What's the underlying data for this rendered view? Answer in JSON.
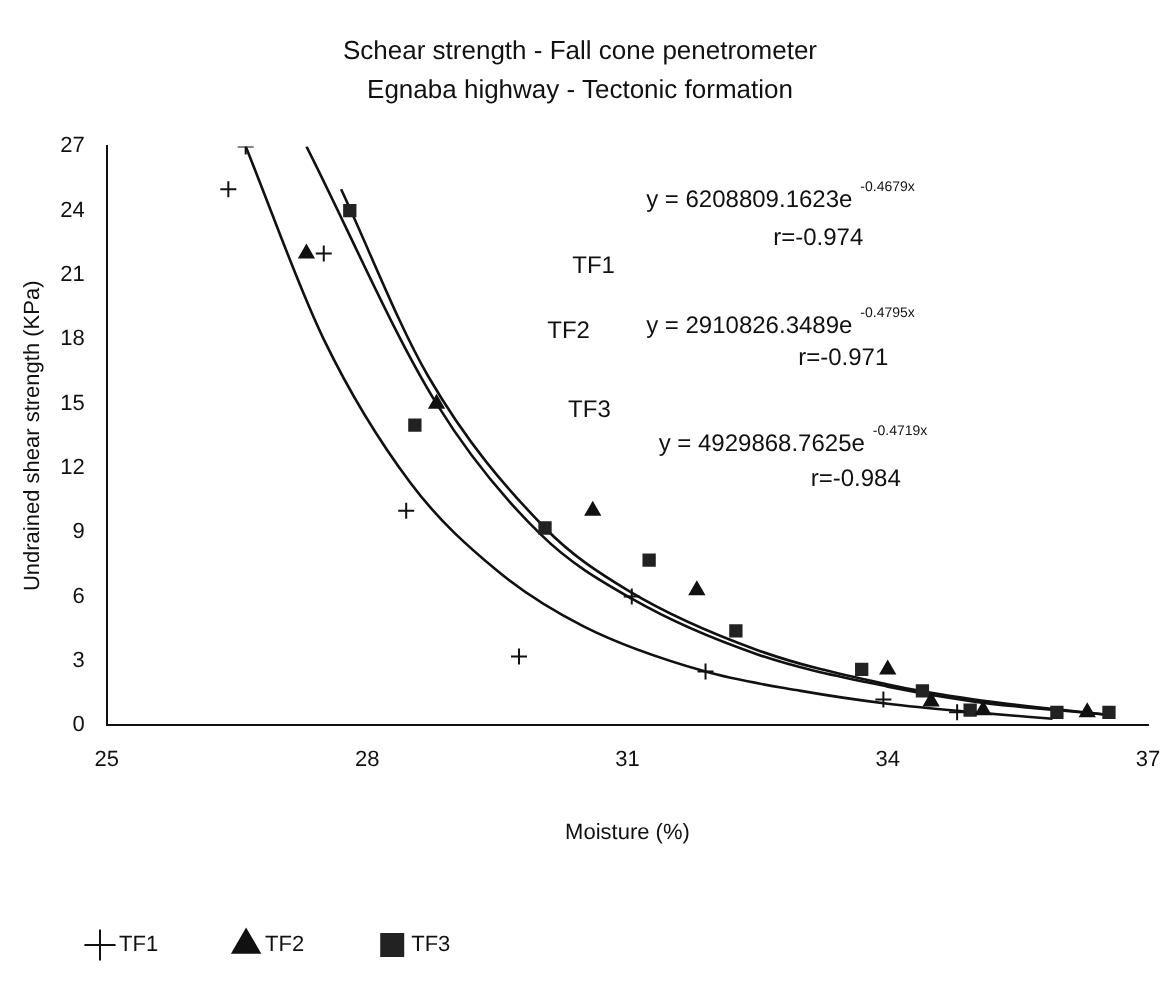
{
  "chart_data": {
    "type": "scatter",
    "title": "Schear strength - Fall cone penetrometer",
    "subtitle": "Egnaba highway - Tectonic formation",
    "xlabel": "Moisture (%)",
    "ylabel": "Undrained shear strength (KPa)",
    "xlim": [
      25,
      37
    ],
    "xticks": [
      25,
      28,
      31,
      34,
      37
    ],
    "ylim": [
      0,
      27
    ],
    "yticks": [
      0,
      3,
      6,
      9,
      12,
      15,
      18,
      21,
      24,
      27
    ],
    "grid": false,
    "legend": "bottom",
    "series": [
      {
        "name": "TF1",
        "marker": "cross",
        "color": "#111111",
        "x": [
          26.4,
          26.6,
          27.5,
          28.45,
          29.75,
          31.05,
          31.9,
          33.95,
          34.8
        ],
        "values": [
          25,
          27,
          22,
          10,
          3.2,
          6,
          2.5,
          1.2,
          0.6
        ]
      },
      {
        "name": "TF2",
        "marker": "triangle",
        "color": "#111111",
        "x": [
          27.3,
          28.8,
          30.6,
          31.8,
          34,
          34.5,
          35.1,
          36.3
        ],
        "values": [
          22,
          15,
          10,
          6.3,
          2.6,
          1.1,
          0.7,
          0.6
        ]
      },
      {
        "name": "TF3",
        "marker": "square",
        "color": "#222222",
        "x": [
          27.8,
          28.55,
          30.05,
          31.25,
          32.25,
          33.7,
          34.4,
          34.95,
          35.95,
          36.55
        ],
        "values": [
          24,
          14,
          9.2,
          7.7,
          4.4,
          2.6,
          1.6,
          0.7,
          0.6,
          0.6
        ]
      },
      {
        "type": "line",
        "marker": "none",
        "color": "#111111",
        "x": [
          26.6,
          27.5,
          28.5,
          29.5,
          30.5,
          31.9,
          33,
          34,
          35,
          35.9
        ],
        "values": [
          27,
          18,
          11.3,
          7.2,
          4.6,
          2.5,
          1.6,
          1.0,
          0.6,
          0.3
        ]
      },
      {
        "type": "line",
        "marker": "none",
        "color": "#111111",
        "x": [
          27.3,
          28.8,
          30,
          31.05,
          32.5,
          34,
          35,
          36.5
        ],
        "values": [
          27,
          15,
          8.9,
          5.9,
          3.3,
          1.8,
          1.1,
          0.5
        ]
      },
      {
        "type": "line",
        "marker": "none",
        "color": "#111111",
        "x": [
          27.7,
          28.7,
          30.05,
          31,
          32.5,
          34,
          35,
          36.5
        ],
        "values": [
          25,
          16.3,
          9.2,
          6.3,
          3.5,
          1.9,
          1.2,
          0.5
        ]
      }
    ],
    "annotations": [
      "TF1",
      "y = 6208809.1623e$^{-0.4679x}$",
      "r=-0.974",
      "TF2",
      "y = 2910826.3489e$^{-0.4795x}$",
      "r=-0.971",
      "TF3",
      "y = 4929868.7625e$^{-0.4719x}$",
      "r=-0.984"
    ]
  }
}
